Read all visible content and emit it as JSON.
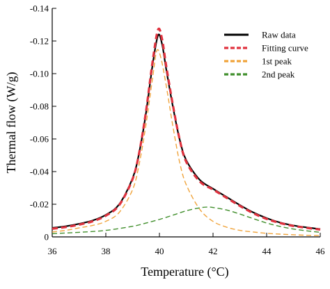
{
  "chart_data": {
    "type": "line",
    "xlabel": "Temperature (°C)",
    "ylabel": "Thermal flow (W/g)",
    "xlim": [
      36,
      46
    ],
    "ylim": [
      0,
      -0.14
    ],
    "y_axis_inverted": true,
    "x_ticks": [
      36,
      38,
      40,
      42,
      44,
      46
    ],
    "x_tick_labels": [
      "36",
      "38",
      "40",
      "42",
      "44",
      "46"
    ],
    "y_ticks": [
      0,
      -0.02,
      -0.04,
      -0.06,
      -0.08,
      -0.1,
      -0.12,
      -0.14
    ],
    "y_tick_labels": [
      "0",
      "-0.02",
      "-0.04",
      "-0.06",
      "-0.08",
      "-0.10",
      "-0.12",
      "-0.14"
    ],
    "grid": false,
    "legend_position": "top-right",
    "series": [
      {
        "name": "Raw data",
        "color": "#000000",
        "style": "solid",
        "x": [
          36,
          36.5,
          37,
          37.5,
          38,
          38.5,
          39,
          39.25,
          39.5,
          39.75,
          39.95,
          40.1,
          40.25,
          40.5,
          40.75,
          41,
          41.5,
          42,
          42.5,
          43,
          43.5,
          44,
          44.5,
          45,
          45.5,
          46
        ],
        "y": [
          -0.0055,
          -0.0065,
          -0.008,
          -0.01,
          -0.0135,
          -0.02,
          -0.036,
          -0.052,
          -0.076,
          -0.106,
          -0.1235,
          -0.118,
          -0.103,
          -0.08,
          -0.06,
          -0.047,
          -0.035,
          -0.0295,
          -0.0245,
          -0.0195,
          -0.015,
          -0.0115,
          -0.0088,
          -0.007,
          -0.0058,
          -0.0048
        ]
      },
      {
        "name": "Fitting curve",
        "color": "#e0323e",
        "style": "dashed",
        "x": [
          36,
          36.5,
          37,
          37.5,
          38,
          38.5,
          39,
          39.25,
          39.5,
          39.75,
          39.95,
          40.1,
          40.25,
          40.5,
          40.75,
          41,
          41.5,
          42,
          42.5,
          43,
          43.5,
          44,
          44.5,
          45,
          45.5,
          46
        ],
        "y": [
          -0.005,
          -0.006,
          -0.0075,
          -0.0095,
          -0.013,
          -0.0195,
          -0.0355,
          -0.052,
          -0.077,
          -0.108,
          -0.127,
          -0.121,
          -0.105,
          -0.081,
          -0.06,
          -0.046,
          -0.034,
          -0.029,
          -0.024,
          -0.019,
          -0.0145,
          -0.011,
          -0.0085,
          -0.0067,
          -0.0055,
          -0.0045
        ]
      },
      {
        "name": "1st peak",
        "color": "#f0a33a",
        "style": "dashed",
        "x": [
          36,
          36.5,
          37,
          37.5,
          38,
          38.5,
          39,
          39.25,
          39.5,
          39.75,
          39.9,
          40.05,
          40.25,
          40.5,
          40.75,
          41,
          41.5,
          42,
          42.5,
          43,
          43.5,
          44,
          44.5,
          45,
          45.5,
          46
        ],
        "y": [
          -0.003,
          -0.004,
          -0.0055,
          -0.007,
          -0.0095,
          -0.015,
          -0.029,
          -0.045,
          -0.069,
          -0.098,
          -0.114,
          -0.11,
          -0.093,
          -0.068,
          -0.046,
          -0.032,
          -0.017,
          -0.0095,
          -0.006,
          -0.004,
          -0.003,
          -0.0022,
          -0.0017,
          -0.0013,
          -0.001,
          -0.0008
        ]
      },
      {
        "name": "2nd peak",
        "color": "#3f8e2a",
        "style": "dashed",
        "x": [
          36,
          37,
          38,
          39,
          39.5,
          40,
          40.5,
          41,
          41.5,
          41.8,
          42,
          42.5,
          43,
          43.5,
          44,
          44.5,
          45,
          45.5,
          46
        ],
        "y": [
          -0.002,
          -0.0028,
          -0.004,
          -0.0065,
          -0.0085,
          -0.0107,
          -0.0133,
          -0.016,
          -0.0178,
          -0.0183,
          -0.018,
          -0.0165,
          -0.014,
          -0.0112,
          -0.0085,
          -0.0064,
          -0.0048,
          -0.0037,
          -0.0028
        ]
      }
    ]
  }
}
